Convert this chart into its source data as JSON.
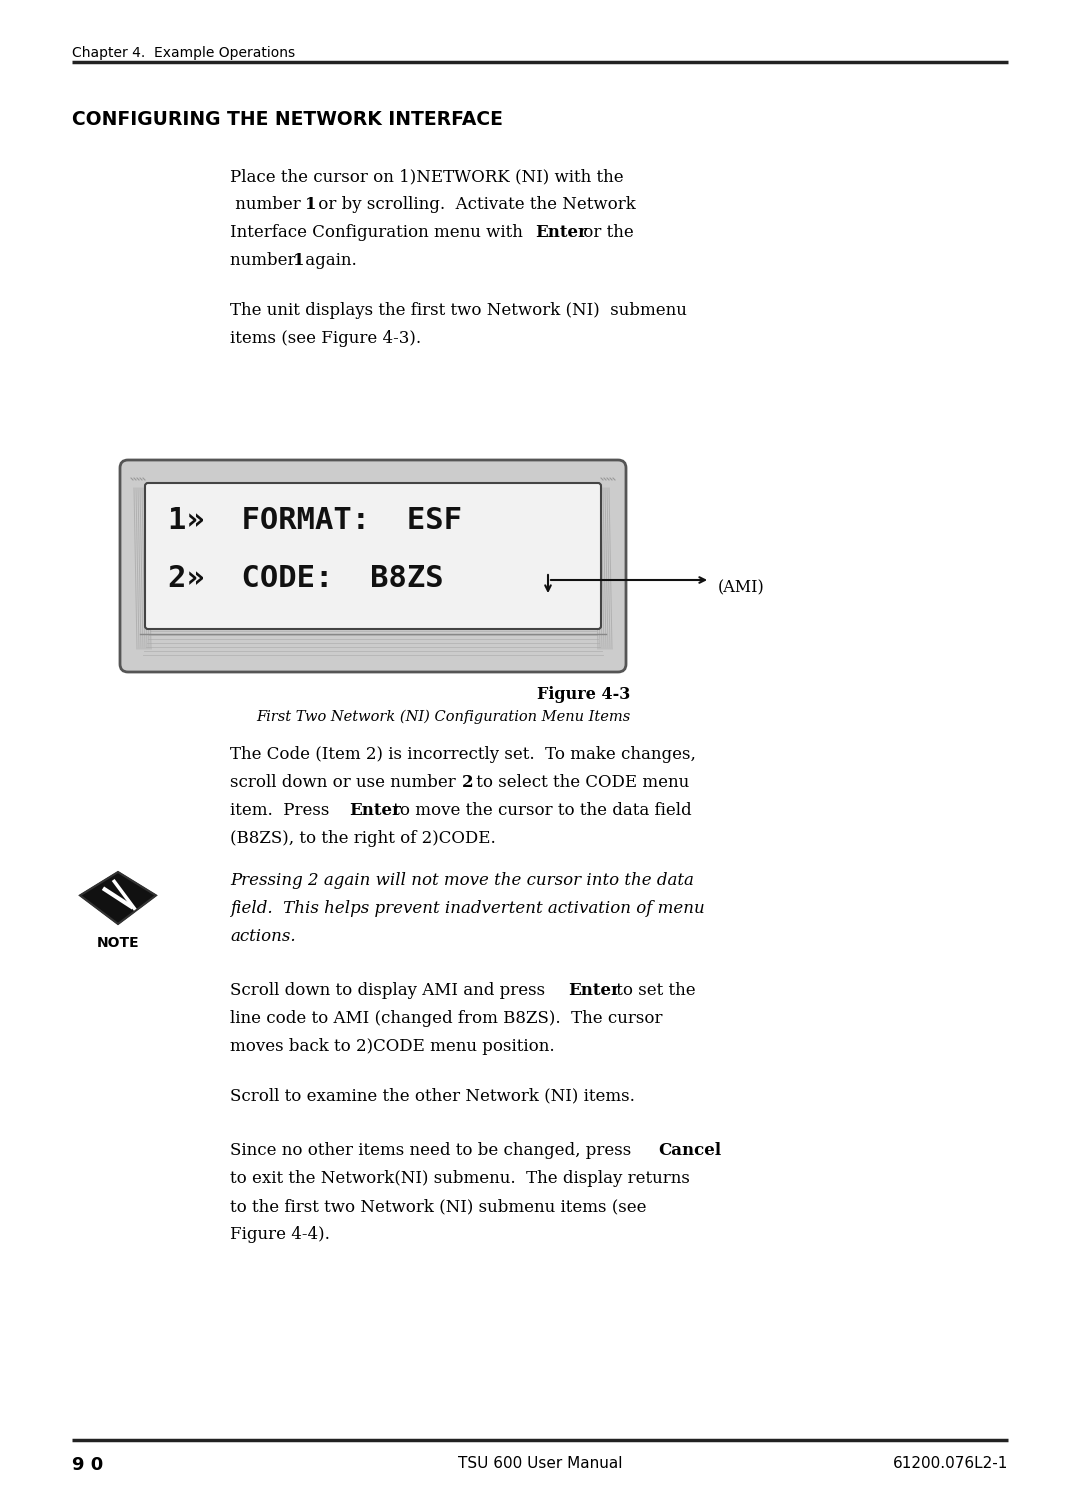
{
  "bg_color": "#ffffff",
  "text_color": "#000000",
  "header_text": "Chapter 4.  Example Operations",
  "section_title": "CONFIGURING THE NETWORK INTERFACE",
  "para1_line1": "Place the cursor on 1)NETWORK (NI) with the",
  "para1_line2_pre": " number ",
  "para1_line2_bold": "1",
  "para1_line2_post": " or by scrolling.  Activate the Network",
  "para1_line3_pre": "Interface Configuration menu with ",
  "para1_line3_bold": "Enter",
  "para1_line3_post": " or the",
  "para1_line4_pre": "number ",
  "para1_line4_bold": "1",
  "para1_line4_post": " again.",
  "para2_line1": "The unit displays the first two Network (NI)  submenu",
  "para2_line2": "items (see Figure 4-3).",
  "display_line1": "1)  FORMAT:  ESF",
  "display_line2": "2)  CODE:  B8ZS",
  "ami_label": "(AMI)",
  "figure_bold": "Figure 4-3",
  "figure_italic": "First Two Network (NI) Configuration Menu Items",
  "body1_line1": "The Code (Item 2) is incorrectly set.  To make changes,",
  "body1_line2_pre": "scroll down or use number ",
  "body1_line2_bold": "2",
  "body1_line2_post": " to select the CODE menu",
  "body1_line3_pre": "item.  Press ",
  "body1_line3_bold": "Enter",
  "body1_line3_post": " to move the cursor to the data field",
  "body1_line4": "(B8ZS), to the right of 2)CODE.",
  "note_line1": "Pressing 2 again will not move the cursor into the data",
  "note_line2": "field.  This helps prevent inadvertent activation of menu",
  "note_line3": "actions.",
  "body2_line1_pre": "Scroll down to display AMI and press ",
  "body2_line1_bold": "Enter",
  "body2_line1_post": " to set the",
  "body2_line2": "line code to AMI (changed from B8ZS).  The cursor",
  "body2_line3": "moves back to 2)CODE menu position.",
  "body3": "Scroll to examine the other Network (NI) items.",
  "body4_line1_pre": "Since no other items need to be changed, press ",
  "body4_line1_bold": "Cancel",
  "body4_line2": "to exit the Network(NI) submenu.  The display returns",
  "body4_line3": "to the first two Network (NI) submenu items (see",
  "body4_line4": "Figure 4-4).",
  "footer_left": "9 0",
  "footer_center": "TSU 600 User Manual",
  "footer_right": "61200.076L2-1"
}
